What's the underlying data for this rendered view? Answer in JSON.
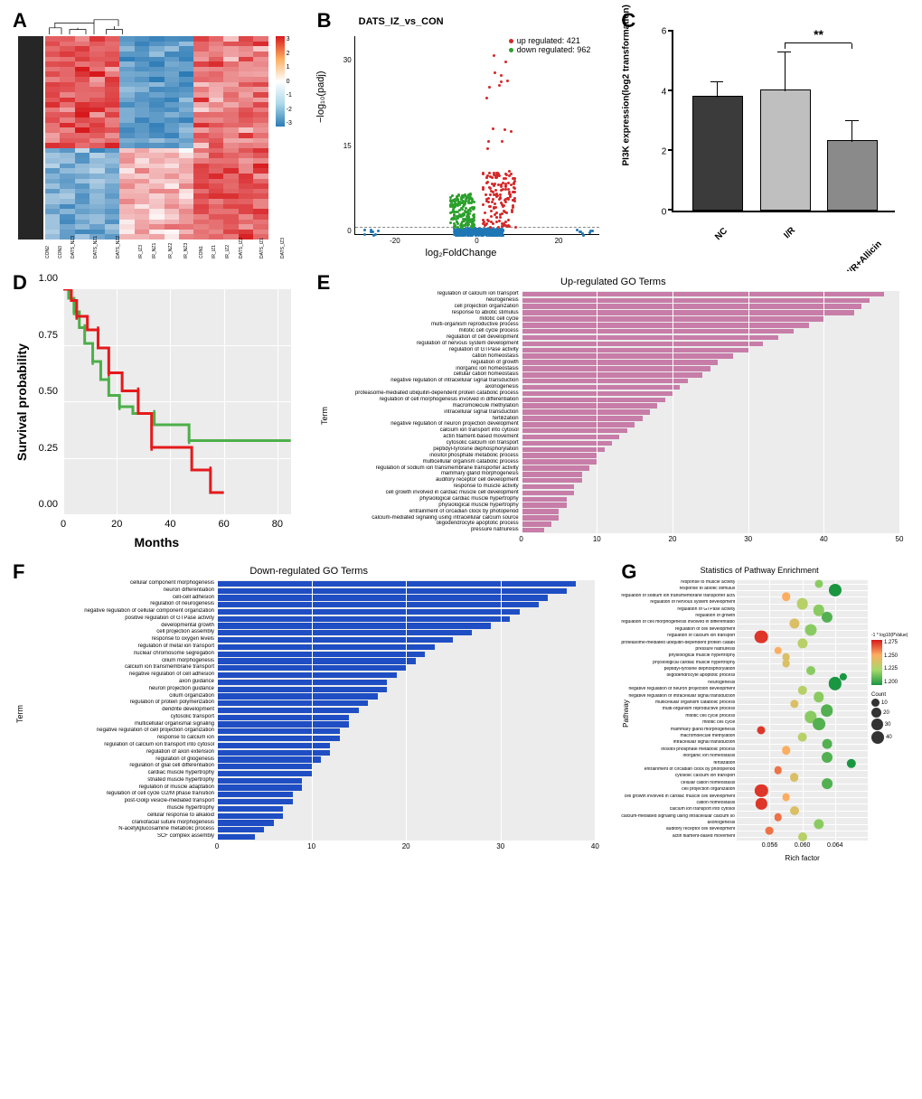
{
  "panels": {
    "A": {
      "label": "A"
    },
    "B": {
      "label": "B"
    },
    "C": {
      "label": "C"
    },
    "D": {
      "label": "D"
    },
    "E": {
      "label": "E"
    },
    "F": {
      "label": "F"
    },
    "G": {
      "label": "G"
    }
  },
  "heatmap": {
    "legend_ticks": [
      "3",
      "2",
      "1",
      "0",
      "-1",
      "-2",
      "-3"
    ],
    "color_high": "#d7191c",
    "color_mid": "#ffffff",
    "color_low": "#2c7bb6",
    "x_labels": [
      "CON2",
      "CON3",
      "DATS_NZ3",
      "DATS_NZ1",
      "DATS_NZ2",
      "IR_IZ3",
      "IR_NZ1",
      "IR_NZ2",
      "IR_NZ3",
      "CON1",
      "IR_IZ1",
      "IR_IZ2",
      "DATS_IZ2",
      "DATS_IZ1",
      "DATS_IZ3"
    ],
    "n_rows": 40,
    "n_cols": 15
  },
  "volcano": {
    "title": "DATS_IZ_vs_CON",
    "legend_up": "up regulated: 421",
    "legend_down": "down regulated: 962",
    "color_up": "#d62728",
    "color_down": "#2ca02c",
    "color_ns": "#1f77b4",
    "ylabel": "−log₁₀(padj)",
    "xlabel": "log₂FoldChange",
    "xlim": [
      -30,
      30
    ],
    "ylim": [
      0,
      35
    ],
    "xticks": [
      -20,
      0,
      20
    ],
    "yticks": [
      0,
      15,
      30
    ],
    "hline_y": 1.3
  },
  "barC": {
    "ylabel": "PI3K expression(log2 transformation)",
    "categories": [
      "NC",
      "I/R",
      "I/R+Allicin"
    ],
    "values": [
      3.8,
      4.0,
      2.3
    ],
    "errors": [
      0.5,
      1.3,
      0.7
    ],
    "colors": [
      "#3b3b3b",
      "#bfbfbf",
      "#8a8a8a"
    ],
    "ylim": [
      0,
      6
    ],
    "yticks": [
      0,
      2,
      4,
      6
    ],
    "sig_label": "**",
    "sig_from": 1,
    "sig_to": 2,
    "sig_y": 5.6
  },
  "survival": {
    "ylabel": "Survival probability",
    "xlabel": "Months",
    "xlim": [
      0,
      85
    ],
    "ylim": [
      0,
      1.0
    ],
    "xticks": [
      0,
      20,
      40,
      60,
      80
    ],
    "yticks": [
      0.0,
      0.25,
      0.5,
      0.75,
      1.0
    ],
    "colors": {
      "g1": "#e41a1c",
      "g2": "#4daf4a"
    },
    "series": {
      "g1": [
        [
          0,
          1.0
        ],
        [
          3,
          1.0
        ],
        [
          3,
          0.95
        ],
        [
          5,
          0.95
        ],
        [
          5,
          0.88
        ],
        [
          9,
          0.88
        ],
        [
          9,
          0.82
        ],
        [
          13,
          0.82
        ],
        [
          13,
          0.74
        ],
        [
          17,
          0.74
        ],
        [
          17,
          0.63
        ],
        [
          22,
          0.63
        ],
        [
          22,
          0.55
        ],
        [
          28,
          0.55
        ],
        [
          28,
          0.45
        ],
        [
          33,
          0.45
        ],
        [
          33,
          0.3
        ],
        [
          48,
          0.3
        ],
        [
          48,
          0.2
        ],
        [
          55,
          0.2
        ],
        [
          55,
          0.1
        ],
        [
          60,
          0.1
        ]
      ],
      "g2": [
        [
          0,
          1.0
        ],
        [
          2,
          1.0
        ],
        [
          2,
          0.96
        ],
        [
          4,
          0.96
        ],
        [
          4,
          0.9
        ],
        [
          6,
          0.9
        ],
        [
          6,
          0.83
        ],
        [
          8,
          0.83
        ],
        [
          8,
          0.76
        ],
        [
          11,
          0.76
        ],
        [
          11,
          0.68
        ],
        [
          14,
          0.68
        ],
        [
          14,
          0.6
        ],
        [
          17,
          0.6
        ],
        [
          17,
          0.53
        ],
        [
          21,
          0.53
        ],
        [
          21,
          0.48
        ],
        [
          26,
          0.48
        ],
        [
          26,
          0.45
        ],
        [
          34,
          0.45
        ],
        [
          34,
          0.4
        ],
        [
          47,
          0.4
        ],
        [
          47,
          0.33
        ],
        [
          85,
          0.33
        ]
      ]
    }
  },
  "goE": {
    "title": "Up-regulated GO Terms",
    "ylabel": "Term",
    "color": "#c77da8",
    "xlim": [
      0,
      50
    ],
    "xticks": [
      0,
      10,
      20,
      30,
      40,
      50
    ],
    "terms": [
      {
        "label": "regulation of calcium ion transport",
        "v": 48
      },
      {
        "label": "neurogenesis",
        "v": 46
      },
      {
        "label": "cell projection organization",
        "v": 45
      },
      {
        "label": "response to abiotic stimulus",
        "v": 44
      },
      {
        "label": "mitotic cell cycle",
        "v": 40
      },
      {
        "label": "multi-organism reproductive process",
        "v": 38
      },
      {
        "label": "mitotic cell cycle process",
        "v": 36
      },
      {
        "label": "regulation of cell development",
        "v": 34
      },
      {
        "label": "regulation of nervous system development",
        "v": 32
      },
      {
        "label": "regulation of GTPase activity",
        "v": 30
      },
      {
        "label": "cation homeostasis",
        "v": 28
      },
      {
        "label": "regulation of growth",
        "v": 26
      },
      {
        "label": "inorganic ion homeostasis",
        "v": 25
      },
      {
        "label": "cellular cation homeostasis",
        "v": 24
      },
      {
        "label": "negative regulation of intracellular signal transduction",
        "v": 22
      },
      {
        "label": "axonogenesis",
        "v": 21
      },
      {
        "label": "proteasome-mediated ubiquitin-dependent protein catabolic process",
        "v": 20
      },
      {
        "label": "regulation of cell morphogenesis involved in differentiation",
        "v": 19
      },
      {
        "label": "macromolecule methylation",
        "v": 18
      },
      {
        "label": "intracellular signal transduction",
        "v": 17
      },
      {
        "label": "fertilization",
        "v": 16
      },
      {
        "label": "negative regulation of neuron projection development",
        "v": 15
      },
      {
        "label": "calcium ion transport into cytosol",
        "v": 14
      },
      {
        "label": "actin filament-based movement",
        "v": 13
      },
      {
        "label": "cytosolic calcium ion transport",
        "v": 12
      },
      {
        "label": "peptidyl-tyrosine dephosphorylation",
        "v": 11
      },
      {
        "label": "inositol phosphate metabolic process",
        "v": 10
      },
      {
        "label": "multicellular organism catabolic process",
        "v": 10
      },
      {
        "label": "regulation of sodium ion transmembrane transporter activity",
        "v": 9
      },
      {
        "label": "mammary gland morphogenesis",
        "v": 8
      },
      {
        "label": "auditory receptor cell development",
        "v": 8
      },
      {
        "label": "response to muscle activity",
        "v": 7
      },
      {
        "label": "cell growth involved in cardiac muscle cell development",
        "v": 7
      },
      {
        "label": "physiological cardiac muscle hypertrophy",
        "v": 6
      },
      {
        "label": "physiological muscle hypertrophy",
        "v": 6
      },
      {
        "label": "entrainment of circadian clock by photoperiod",
        "v": 5
      },
      {
        "label": "calcium-mediated signaling using intracellular calcium source",
        "v": 5
      },
      {
        "label": "oligodendrocyte apoptotic process",
        "v": 4
      },
      {
        "label": "pressure natriuresis",
        "v": 3
      }
    ]
  },
  "goF": {
    "title": "Down-regulated GO Terms",
    "ylabel": "Term",
    "color": "#1f4ec4",
    "xlim": [
      0,
      40
    ],
    "xticks": [
      0,
      10,
      20,
      30,
      40
    ],
    "terms": [
      {
        "label": "cellular component morphogenesis",
        "v": 38
      },
      {
        "label": "neuron differentiation",
        "v": 37
      },
      {
        "label": "cell-cell adhesion",
        "v": 35
      },
      {
        "label": "regulation of neurogenesis",
        "v": 34
      },
      {
        "label": "negative regulation of cellular component organization",
        "v": 32
      },
      {
        "label": "positive regulation of GTPase activity",
        "v": 31
      },
      {
        "label": "developmental growth",
        "v": 29
      },
      {
        "label": "cell projection assembly",
        "v": 27
      },
      {
        "label": "response to oxygen levels",
        "v": 25
      },
      {
        "label": "regulation of metal ion transport",
        "v": 23
      },
      {
        "label": "nuclear chromosome segregation",
        "v": 22
      },
      {
        "label": "cilium morphogenesis",
        "v": 21
      },
      {
        "label": "calcium ion transmembrane transport",
        "v": 20
      },
      {
        "label": "negative regulation of cell adhesion",
        "v": 19
      },
      {
        "label": "axon guidance",
        "v": 18
      },
      {
        "label": "neuron projection guidance",
        "v": 18
      },
      {
        "label": "cilium organization",
        "v": 17
      },
      {
        "label": "regulation of protein polymerization",
        "v": 16
      },
      {
        "label": "dendrite development",
        "v": 15
      },
      {
        "label": "cytosolic transport",
        "v": 14
      },
      {
        "label": "multicellular organismal signaling",
        "v": 14
      },
      {
        "label": "negative regulation of cell projection organization",
        "v": 13
      },
      {
        "label": "response to calcium ion",
        "v": 13
      },
      {
        "label": "regulation of calcium ion transport into cytosol",
        "v": 12
      },
      {
        "label": "regulation of axon extension",
        "v": 12
      },
      {
        "label": "regulation of gliogenesis",
        "v": 11
      },
      {
        "label": "regulation of glial cell differentiation",
        "v": 10
      },
      {
        "label": "cardiac muscle hypertrophy",
        "v": 10
      },
      {
        "label": "striated muscle hypertrophy",
        "v": 9
      },
      {
        "label": "regulation of muscle adaptation",
        "v": 9
      },
      {
        "label": "regulation of cell cycle G2/M phase transition",
        "v": 8
      },
      {
        "label": "post-Golgi vesicle-mediated transport",
        "v": 8
      },
      {
        "label": "muscle hypertrophy",
        "v": 7
      },
      {
        "label": "cellular response to alkaloid",
        "v": 7
      },
      {
        "label": "craniofacial suture morphogenesis",
        "v": 6
      },
      {
        "label": "N-acetylglucosamine metabolic process",
        "v": 5
      },
      {
        "label": "SCF complex assembly",
        "v": 4
      }
    ]
  },
  "bubble": {
    "title": "Statistics of Pathway Enrichment",
    "ylabel": "Pathway",
    "xlabel": "Rich factor",
    "xlim": [
      0.052,
      0.068
    ],
    "xticks": [
      0.056,
      0.06,
      0.064
    ],
    "count_legend": [
      10,
      20,
      30,
      40
    ],
    "pvalue_legend_label": "-1 * log10(PValue)",
    "pvalue_ticks": [
      "1.275",
      "1.250",
      "1.225",
      "1.200"
    ],
    "color_high": "#d7191c",
    "color_low": "#1a9641",
    "terms": [
      {
        "label": "response to muscle activity",
        "x": 0.062,
        "count": 10,
        "pv": 1.22
      },
      {
        "label": "response to abiotic stimulus",
        "x": 0.064,
        "count": 40,
        "pv": 1.2
      },
      {
        "label": "regulation of sodium ion transmembrane transporter activity",
        "x": 0.058,
        "count": 12,
        "pv": 1.25
      },
      {
        "label": "regulation of nervous system development",
        "x": 0.06,
        "count": 30,
        "pv": 1.23
      },
      {
        "label": "regulation of GTPase activity",
        "x": 0.062,
        "count": 28,
        "pv": 1.22
      },
      {
        "label": "regulation of growth",
        "x": 0.063,
        "count": 26,
        "pv": 1.21
      },
      {
        "label": "regulation of cell morphogenesis involved in differentiation",
        "x": 0.059,
        "count": 20,
        "pv": 1.24
      },
      {
        "label": "regulation of cell development",
        "x": 0.061,
        "count": 32,
        "pv": 1.22
      },
      {
        "label": "regulation of calcium ion transport",
        "x": 0.055,
        "count": 45,
        "pv": 1.27
      },
      {
        "label": "proteasome-mediated ubiquitin-dependent protein catabolic process",
        "x": 0.06,
        "count": 20,
        "pv": 1.23
      },
      {
        "label": "pressure natriuresis",
        "x": 0.057,
        "count": 8,
        "pv": 1.25
      },
      {
        "label": "physiological muscle hypertrophy",
        "x": 0.058,
        "count": 9,
        "pv": 1.24
      },
      {
        "label": "physiological cardiac muscle hypertrophy",
        "x": 0.058,
        "count": 9,
        "pv": 1.24
      },
      {
        "label": "peptidyl-tyrosine dephosphorylation",
        "x": 0.061,
        "count": 14,
        "pv": 1.22
      },
      {
        "label": "oligodendrocyte apoptotic process",
        "x": 0.065,
        "count": 7,
        "pv": 1.2
      },
      {
        "label": "neurogenesis",
        "x": 0.064,
        "count": 42,
        "pv": 1.2
      },
      {
        "label": "negative regulation of neuron projection development",
        "x": 0.06,
        "count": 16,
        "pv": 1.23
      },
      {
        "label": "negative regulation of intracellular signal transduction",
        "x": 0.062,
        "count": 22,
        "pv": 1.22
      },
      {
        "label": "multicellular organism catabolic process",
        "x": 0.059,
        "count": 11,
        "pv": 1.24
      },
      {
        "label": "multi-organism reproductive process",
        "x": 0.063,
        "count": 36,
        "pv": 1.21
      },
      {
        "label": "mitotic cell cycle process",
        "x": 0.061,
        "count": 34,
        "pv": 1.22
      },
      {
        "label": "mitotic cell cycle",
        "x": 0.062,
        "count": 38,
        "pv": 1.21
      },
      {
        "label": "mammary gland morphogenesis",
        "x": 0.055,
        "count": 10,
        "pv": 1.27
      },
      {
        "label": "macromolecule methylation",
        "x": 0.06,
        "count": 18,
        "pv": 1.23
      },
      {
        "label": "intracellular signal transduction",
        "x": 0.063,
        "count": 18,
        "pv": 1.21
      },
      {
        "label": "inositol phosphate metabolic process",
        "x": 0.058,
        "count": 12,
        "pv": 1.25
      },
      {
        "label": "inorganic ion homeostasis",
        "x": 0.063,
        "count": 25,
        "pv": 1.21
      },
      {
        "label": "fertilization",
        "x": 0.066,
        "count": 16,
        "pv": 1.2
      },
      {
        "label": "entrainment of circadian clock by photoperiod",
        "x": 0.057,
        "count": 8,
        "pv": 1.26
      },
      {
        "label": "cytosolic calcium ion transport",
        "x": 0.059,
        "count": 13,
        "pv": 1.24
      },
      {
        "label": "cellular cation homeostasis",
        "x": 0.063,
        "count": 24,
        "pv": 1.21
      },
      {
        "label": "cell projection organization",
        "x": 0.055,
        "count": 42,
        "pv": 1.27
      },
      {
        "label": "cell growth involved in cardiac muscle cell development",
        "x": 0.058,
        "count": 9,
        "pv": 1.25
      },
      {
        "label": "cation homeostasis",
        "x": 0.055,
        "count": 27,
        "pv": 1.27
      },
      {
        "label": "calcium ion transport into cytosol",
        "x": 0.059,
        "count": 14,
        "pv": 1.24
      },
      {
        "label": "calcium-mediated signaling using intracellular calcium source",
        "x": 0.057,
        "count": 8,
        "pv": 1.26
      },
      {
        "label": "axonogenesis",
        "x": 0.062,
        "count": 21,
        "pv": 1.22
      },
      {
        "label": "auditory receptor cell development",
        "x": 0.056,
        "count": 9,
        "pv": 1.26
      },
      {
        "label": "actin filament-based movement",
        "x": 0.06,
        "count": 14,
        "pv": 1.23
      }
    ]
  }
}
